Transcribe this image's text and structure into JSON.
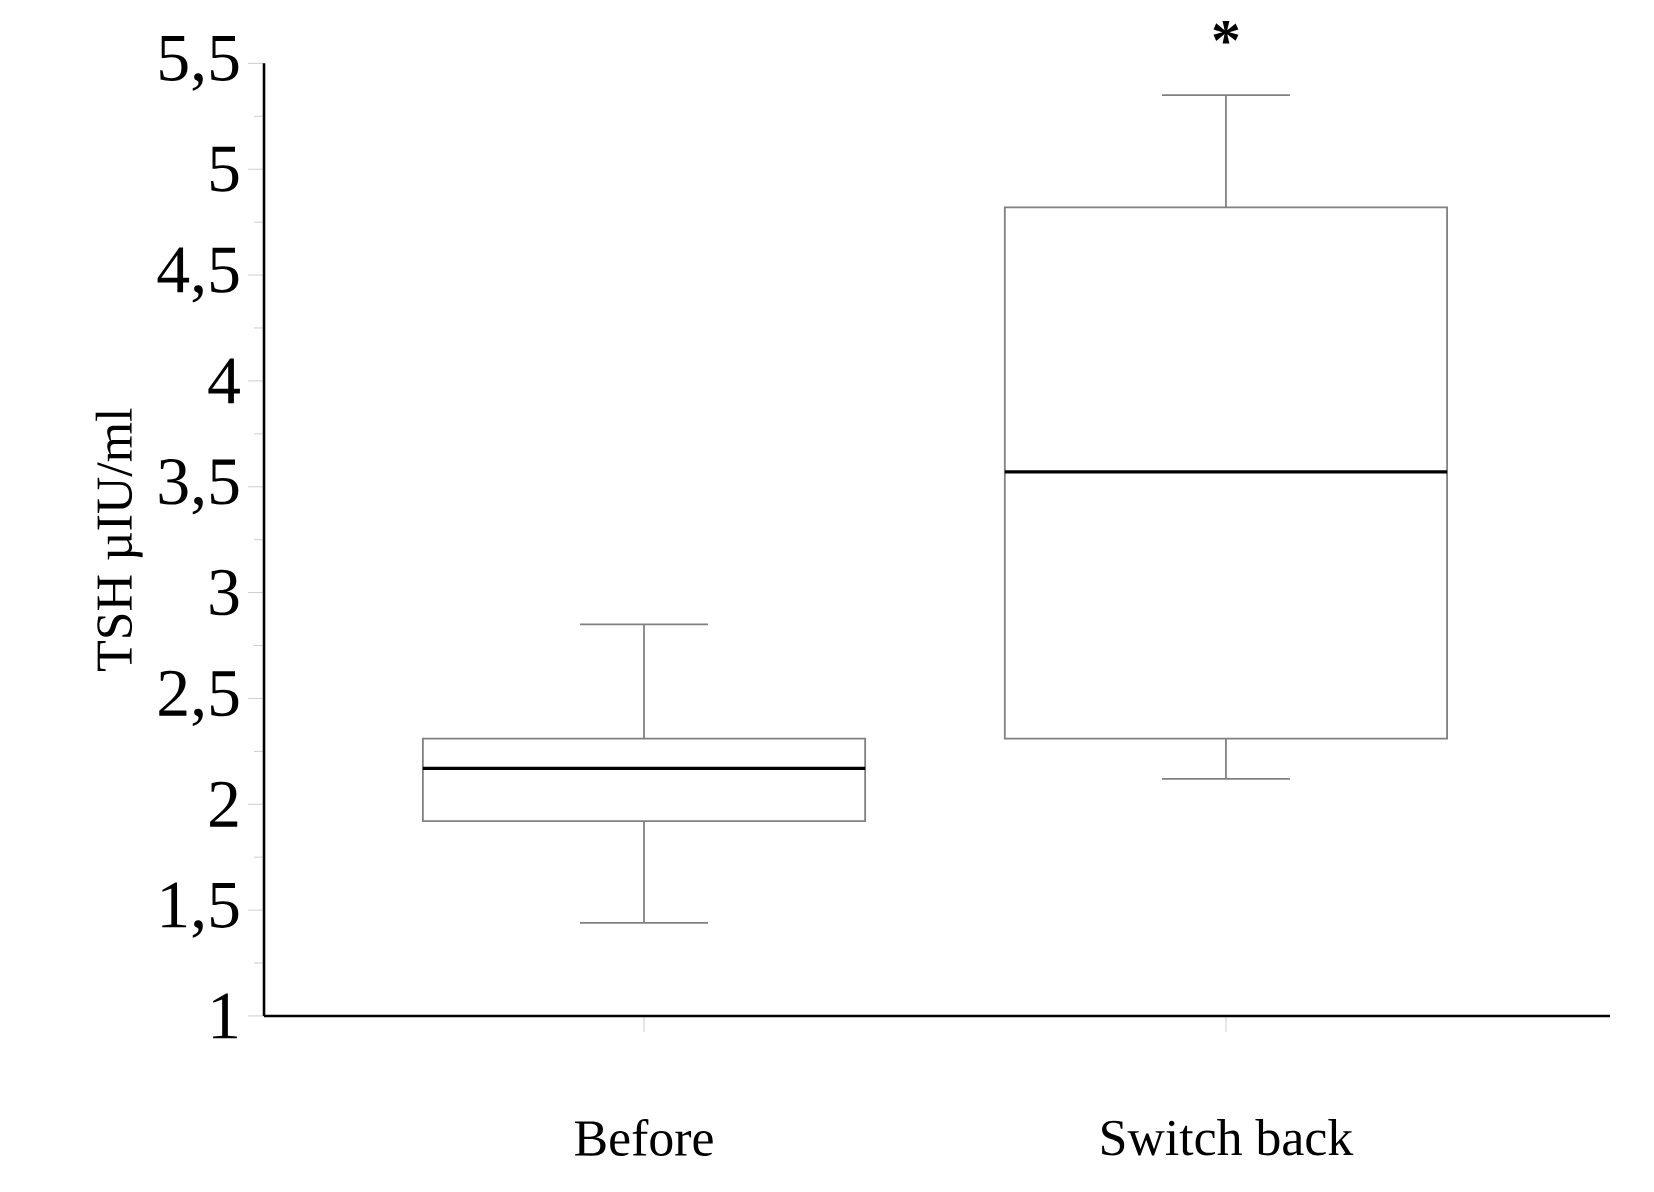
{
  "chart_data": {
    "type": "box",
    "ylabel": "TSH µIU/ml",
    "categories": [
      "Before",
      "Switch back"
    ],
    "boxes": [
      {
        "low": 1.44,
        "q1": 1.92,
        "median": 2.17,
        "q3": 2.31,
        "high": 2.85
      },
      {
        "low": 2.12,
        "q1": 2.31,
        "median": 3.57,
        "q3": 4.82,
        "high": 5.35
      }
    ],
    "color": "#808080",
    "ylim": [
      1,
      5.5
    ],
    "yticks": [
      1,
      {
        "value": 1.5,
        "label": "1,5"
      },
      2,
      {
        "value": 2.5,
        "label": "2,5"
      },
      3,
      {
        "value": 3.5,
        "label": "3,5"
      },
      4,
      {
        "value": 4.5,
        "label": "4,5"
      },
      5,
      {
        "value": 5.5,
        "label": "5,5"
      }
    ],
    "grid": false,
    "annotations": [
      "*"
    ]
  }
}
